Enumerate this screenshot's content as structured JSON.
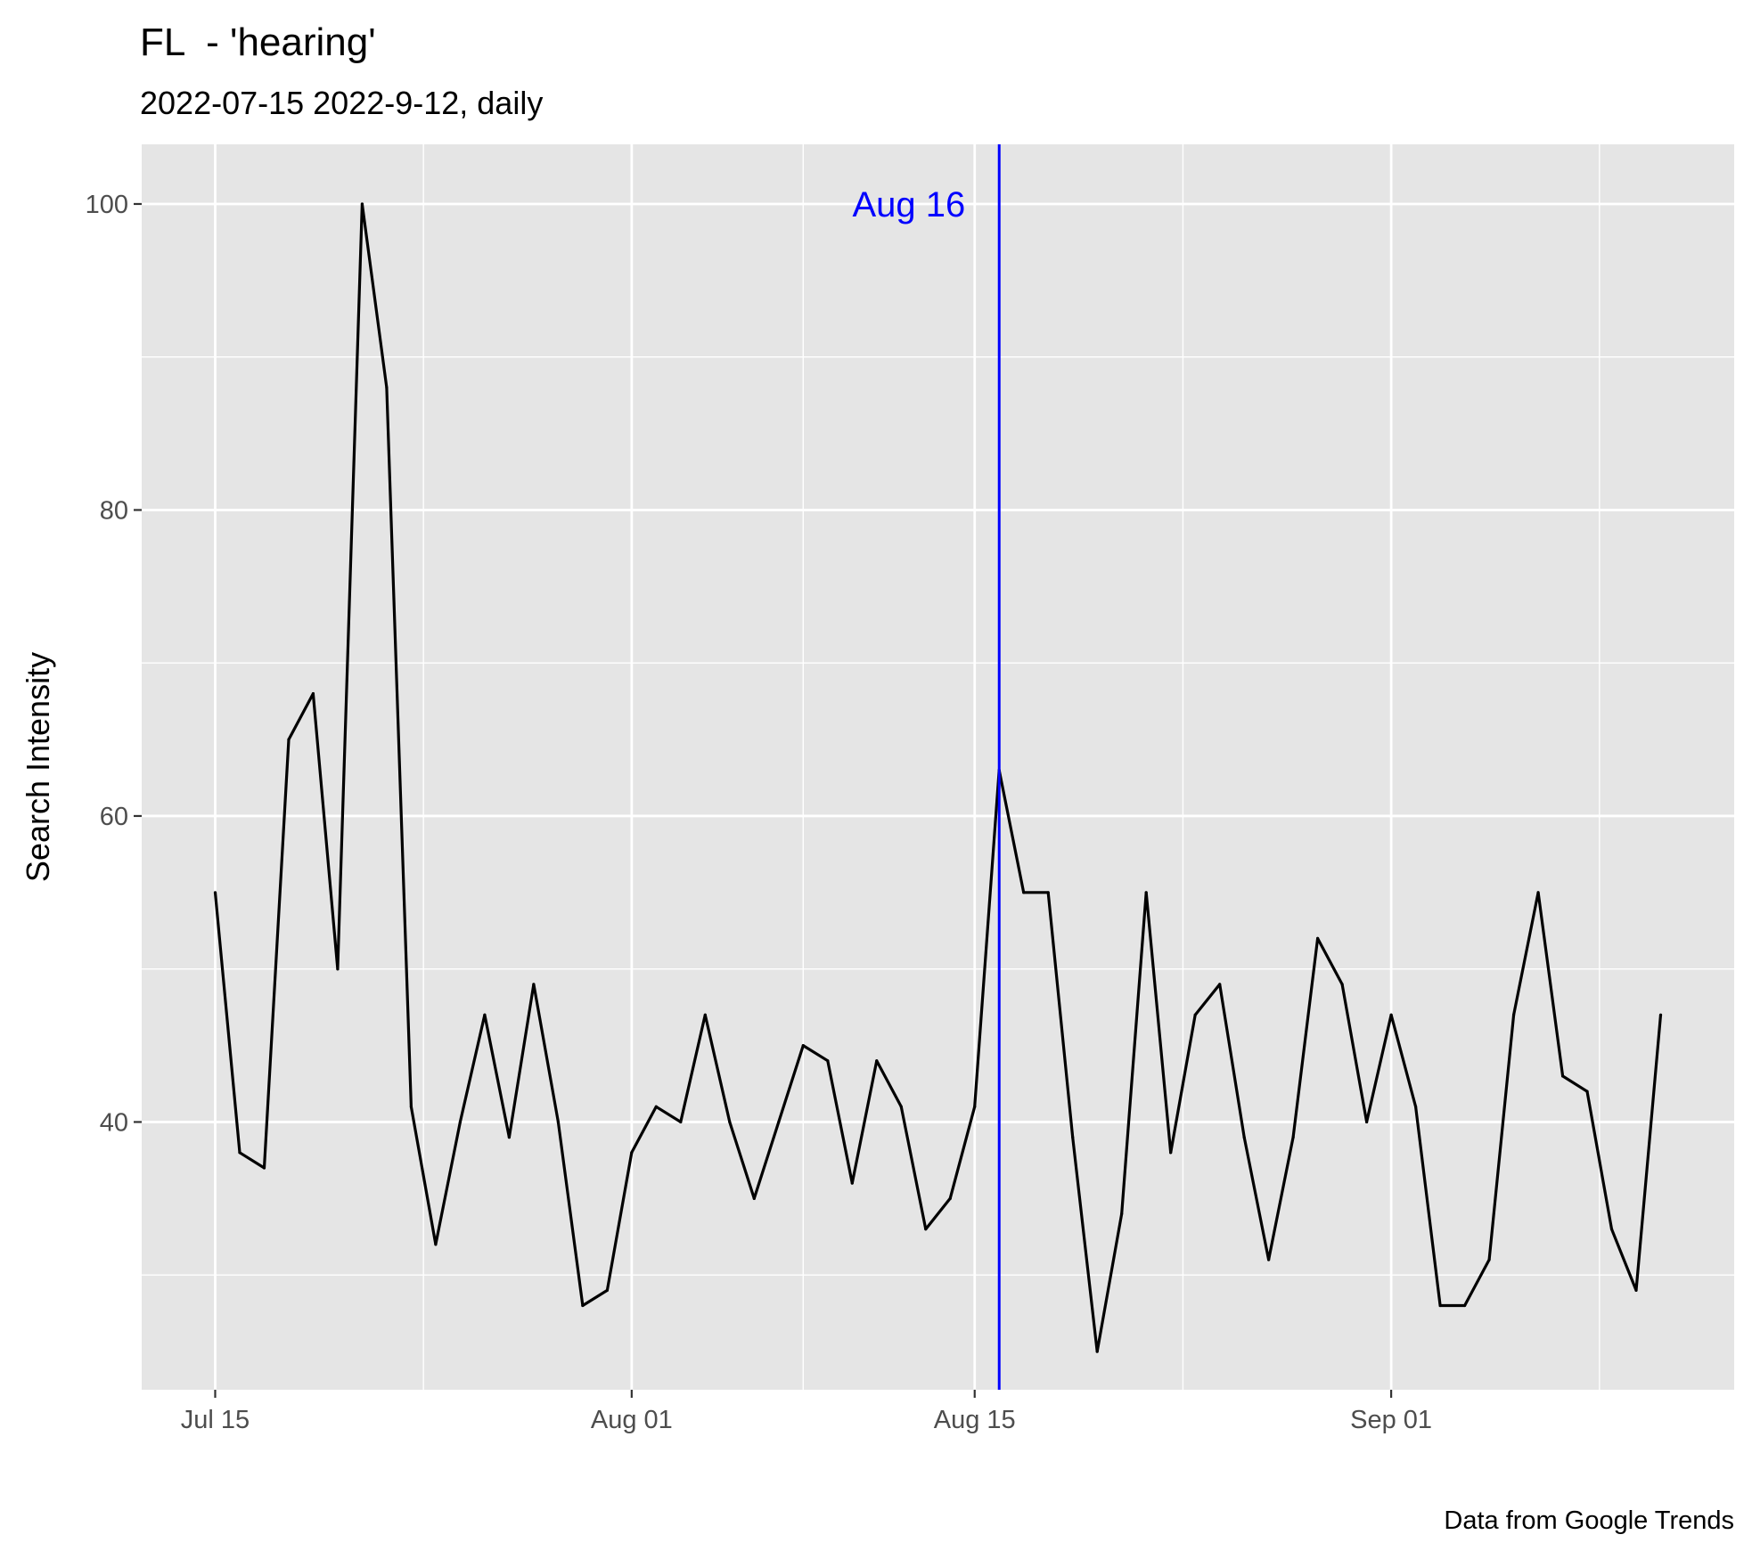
{
  "chart_data": {
    "type": "line",
    "title": "FL  - 'hearing'",
    "subtitle": "2022-07-15 2022-9-12, daily",
    "caption": "Data from Google Trends",
    "xlabel": "",
    "ylabel": "Search Intensity",
    "x_ticks": [
      {
        "date": "2022-07-15",
        "label": "Jul 15"
      },
      {
        "date": "2022-08-01",
        "label": "Aug 01"
      },
      {
        "date": "2022-08-15",
        "label": "Aug 15"
      },
      {
        "date": "2022-09-01",
        "label": "Sep 01"
      }
    ],
    "y_ticks": [
      40,
      60,
      80,
      100
    ],
    "xlim": [
      "2022-07-12",
      "2022-09-15"
    ],
    "ylim": [
      22.5,
      103.9
    ],
    "grid": true,
    "series": [
      {
        "color": "#000000",
        "x": [
          "2022-07-15",
          "2022-07-16",
          "2022-07-17",
          "2022-07-18",
          "2022-07-19",
          "2022-07-20",
          "2022-07-21",
          "2022-07-22",
          "2022-07-23",
          "2022-07-24",
          "2022-07-25",
          "2022-07-26",
          "2022-07-27",
          "2022-07-28",
          "2022-07-29",
          "2022-07-30",
          "2022-07-31",
          "2022-08-01",
          "2022-08-02",
          "2022-08-03",
          "2022-08-04",
          "2022-08-05",
          "2022-08-06",
          "2022-08-07",
          "2022-08-08",
          "2022-08-09",
          "2022-08-10",
          "2022-08-11",
          "2022-08-12",
          "2022-08-13",
          "2022-08-14",
          "2022-08-15",
          "2022-08-16",
          "2022-08-17",
          "2022-08-18",
          "2022-08-19",
          "2022-08-20",
          "2022-08-21",
          "2022-08-22",
          "2022-08-23",
          "2022-08-24",
          "2022-08-25",
          "2022-08-26",
          "2022-08-27",
          "2022-08-28",
          "2022-08-29",
          "2022-08-30",
          "2022-08-31",
          "2022-09-01",
          "2022-09-02",
          "2022-09-03",
          "2022-09-04",
          "2022-09-05",
          "2022-09-06",
          "2022-09-07",
          "2022-09-08",
          "2022-09-09",
          "2022-09-10",
          "2022-09-11",
          "2022-09-12"
        ],
        "values": [
          55,
          38,
          37,
          65,
          68,
          50,
          100,
          88,
          41,
          32,
          40,
          47,
          39,
          49,
          40,
          28,
          29,
          38,
          41,
          40,
          47,
          40,
          35,
          40,
          45,
          44,
          36,
          44,
          41,
          33,
          35,
          41,
          63,
          55,
          55,
          39,
          25,
          34,
          55,
          38,
          47,
          49,
          39,
          31,
          39,
          52,
          49,
          40,
          47,
          41,
          28,
          28,
          31,
          47,
          55,
          43,
          42,
          33,
          29,
          47
        ]
      }
    ],
    "annotations": [
      {
        "type": "vline",
        "date": "2022-08-16",
        "label": "Aug 16",
        "color": "#0000ff",
        "label_y": 100
      }
    ]
  }
}
